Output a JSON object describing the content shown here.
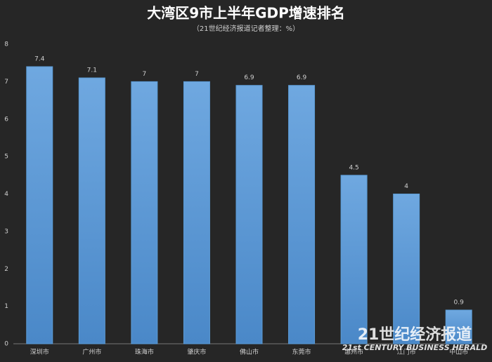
{
  "chart_data": {
    "type": "bar",
    "title": "大湾区9市上半年GDP增速排名",
    "subtitle": "（21世纪经济报道记者整理：%）",
    "categories": [
      "深圳市",
      "广州市",
      "珠海市",
      "肇庆市",
      "佛山市",
      "东莞市",
      "惠州市",
      "江门市",
      "中山市"
    ],
    "values": [
      7.4,
      7.1,
      7,
      7,
      6.9,
      6.9,
      4.5,
      4,
      0.9
    ],
    "color": "#5b9bd5",
    "ylim": [
      0,
      8
    ],
    "yticks": [
      0,
      1,
      2,
      3,
      4,
      5,
      6,
      7,
      8
    ],
    "grid": false,
    "watermark": {
      "name": "21世纪经济报道",
      "english": "21st CENTURY BUSINESS HERALD"
    }
  }
}
